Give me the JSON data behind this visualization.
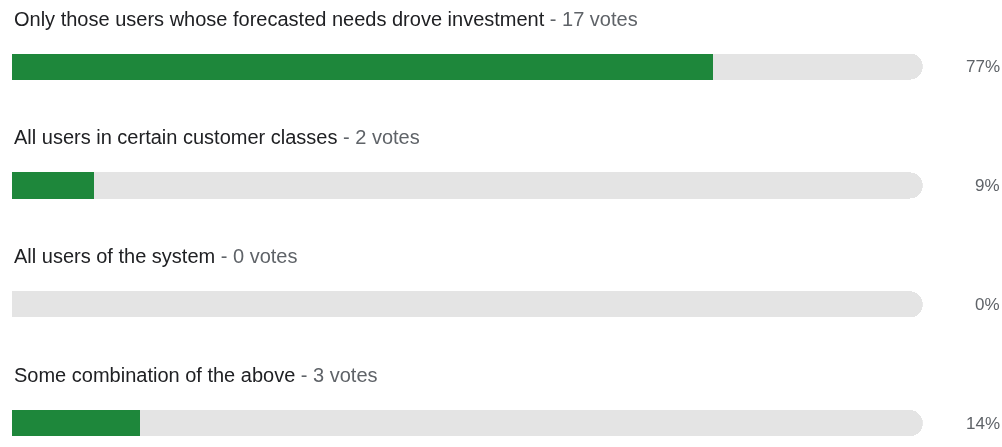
{
  "chart_data": {
    "type": "bar",
    "orientation": "horizontal",
    "categories": [
      "Only those users whose forecasted needs drove investment - 17 votes",
      "All users in certain customer classes - 2 votes",
      "All users of the system - 0 votes",
      "Some combination of the above - 3 votes"
    ],
    "series": [
      {
        "color": "#1e873b",
        "values": [
          77,
          9,
          0,
          14
        ],
        "value_labels": [
          "77%",
          "9%",
          "0%",
          "14%"
        ]
      },
      {
        "color": "#e4e4e4",
        "values": [
          23,
          91,
          100,
          86
        ]
      }
    ],
    "stacked": true,
    "xlim": [
      0,
      100
    ],
    "tick_labels": false
  }
}
